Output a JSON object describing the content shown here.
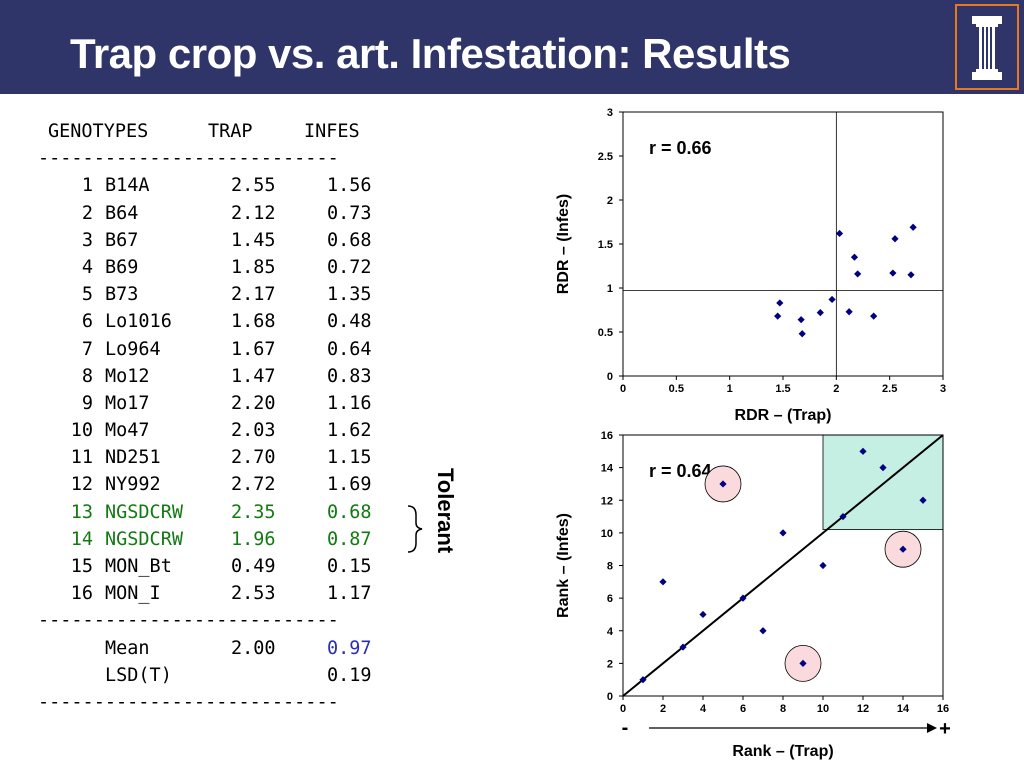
{
  "title": "Trap crop vs. art. Infestation: Results",
  "table": {
    "headers": [
      "GENOTYPES",
      "TRAP",
      "INFES"
    ],
    "separator": "---------------------------",
    "rows": [
      {
        "num": "1",
        "name": "B14A",
        "trap": "2.55",
        "infes": "1.56"
      },
      {
        "num": "2",
        "name": "B64",
        "trap": "2.12",
        "infes": "0.73"
      },
      {
        "num": "3",
        "name": "B67",
        "trap": "1.45",
        "infes": "0.68"
      },
      {
        "num": "4",
        "name": "B69",
        "trap": "1.85",
        "infes": "0.72"
      },
      {
        "num": "5",
        "name": "B73",
        "trap": "2.17",
        "infes": "1.35"
      },
      {
        "num": "6",
        "name": "Lo1016",
        "trap": "1.68",
        "infes": "0.48"
      },
      {
        "num": "7",
        "name": "Lo964",
        "trap": "1.67",
        "infes": "0.64"
      },
      {
        "num": "8",
        "name": "Mo12",
        "trap": "1.47",
        "infes": "0.83"
      },
      {
        "num": "9",
        "name": "Mo17",
        "trap": "2.20",
        "infes": "1.16"
      },
      {
        "num": "10",
        "name": "Mo47",
        "trap": "2.03",
        "infes": "1.62"
      },
      {
        "num": "11",
        "name": "ND251",
        "trap": "2.70",
        "infes": "1.15"
      },
      {
        "num": "12",
        "name": "NY992",
        "trap": "2.72",
        "infes": "1.69"
      },
      {
        "num": "13",
        "name": "NGSDCRW",
        "trap": "2.35",
        "infes": "0.68"
      },
      {
        "num": "14",
        "name": "NGSDCRW",
        "trap": "1.96",
        "infes": "0.87"
      },
      {
        "num": "15",
        "name": "MON_Bt",
        "trap": "0.49",
        "infes": "0.15"
      },
      {
        "num": "16",
        "name": "MON_I",
        "trap": "2.53",
        "infes": "1.17"
      }
    ],
    "highlight_rows": [
      12,
      13
    ],
    "highlight_color": "#137a13",
    "mean": {
      "label": "Mean",
      "trap": "2.00",
      "infes": "0.97"
    },
    "lsd": {
      "label": "LSD(T)",
      "trap": "",
      "infes": "0.19"
    },
    "mean_infes_color": "#2b2fb5"
  },
  "tolerant_label": "Tolerant",
  "colors": {
    "header_bg": "#2f3568",
    "logo_border": "#e87722",
    "marker": "#000080",
    "quadrant_fill": "#c6efe3",
    "circle_fill": "#fadadd"
  },
  "chart_data": [
    {
      "type": "scatter",
      "annotation": "r = 0.66",
      "xlabel": "RDR – (Trap)",
      "ylabel": "RDR – (Infes)",
      "xlim": [
        0,
        3
      ],
      "ylim": [
        0,
        3
      ],
      "xticks": [
        "0",
        "0.5",
        "1",
        "1.5",
        "2",
        "2.5",
        "3"
      ],
      "yticks": [
        "0",
        "0.5",
        "1",
        "1.5",
        "2",
        "2.5",
        "3"
      ],
      "reference_lines": {
        "x": 2.0,
        "y": 0.97
      },
      "x": [
        2.55,
        2.12,
        1.45,
        1.85,
        2.17,
        1.68,
        1.67,
        1.47,
        2.2,
        2.03,
        2.7,
        2.72,
        2.35,
        1.96,
        2.53
      ],
      "y": [
        1.56,
        0.73,
        0.68,
        0.72,
        1.35,
        0.48,
        0.64,
        0.83,
        1.16,
        1.62,
        1.15,
        1.69,
        0.68,
        0.87,
        1.17
      ]
    },
    {
      "type": "scatter",
      "annotation": "r = 0.64",
      "xlabel": "Rank – (Trap)",
      "ylabel": "Rank – (Infes)",
      "xlim": [
        0,
        16
      ],
      "ylim": [
        0,
        16
      ],
      "xticks": [
        "0",
        "2",
        "4",
        "6",
        "8",
        "10",
        "12",
        "14",
        "16"
      ],
      "yticks": [
        "0",
        "2",
        "4",
        "6",
        "8",
        "10",
        "12",
        "14",
        "16"
      ],
      "diagonal": true,
      "highlight_region": {
        "x": [
          10,
          16
        ],
        "y": [
          10.2,
          16
        ]
      },
      "x": [
        1,
        2,
        3,
        4,
        5,
        6,
        7,
        8,
        9,
        10,
        11,
        12,
        13,
        14,
        15
      ],
      "y": [
        1,
        7,
        3,
        5,
        13,
        6,
        4,
        10,
        2,
        8,
        11,
        15,
        14,
        9,
        12
      ],
      "circled": [
        [
          5,
          13
        ],
        [
          9,
          2
        ],
        [
          14,
          9
        ]
      ],
      "direction_labels": {
        "minus": "-",
        "plus": "+"
      }
    }
  ]
}
